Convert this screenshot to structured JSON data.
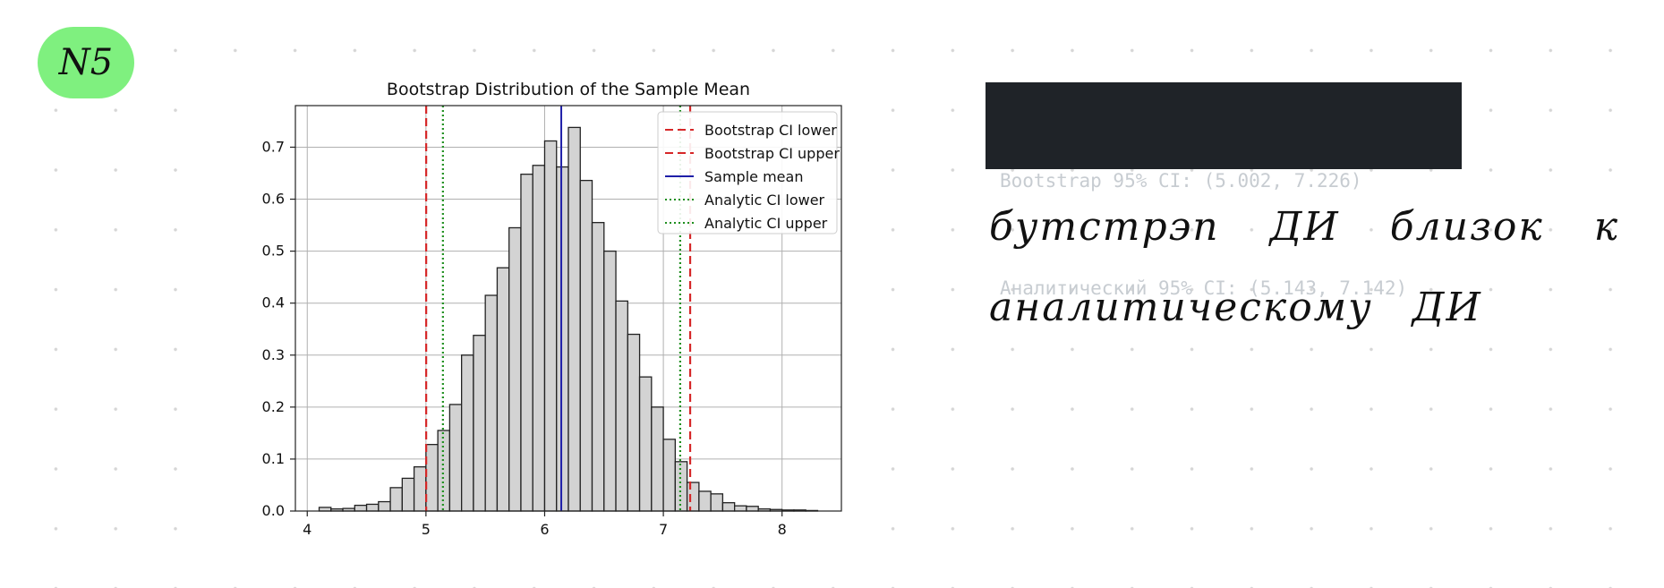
{
  "badge": {
    "label": "N5"
  },
  "console": {
    "lines": [
      "Bootstrap 95% CI: (5.002, 7.226)",
      "Аналитический 95% CI: (5.143, 7.142)"
    ]
  },
  "note": {
    "lines": [
      "бутстрэп ДИ близок к",
      "аналитическому ДИ"
    ]
  },
  "chart_data": {
    "type": "bar",
    "title": "Bootstrap Distribution of the Sample Mean",
    "xlabel": "",
    "ylabel": "",
    "xlim": [
      3.9,
      8.5
    ],
    "ylim": [
      0,
      0.78
    ],
    "grid": true,
    "legend_position": "top-right",
    "x_ticks": [
      4,
      5,
      6,
      7,
      8
    ],
    "y_ticks": [
      0.0,
      0.1,
      0.2,
      0.3,
      0.4,
      0.5,
      0.6,
      0.7
    ],
    "bin_width": 0.1,
    "bin_left_edges": [
      4.1,
      4.2,
      4.3,
      4.4,
      4.5,
      4.6,
      4.7,
      4.8,
      4.9,
      5.0,
      5.1,
      5.2,
      5.3,
      5.4,
      5.5,
      5.6,
      5.7,
      5.8,
      5.9,
      6.0,
      6.1,
      6.2,
      6.3,
      6.4,
      6.5,
      6.6,
      6.7,
      6.8,
      6.9,
      7.0,
      7.1,
      7.2,
      7.3,
      7.4,
      7.5,
      7.6,
      7.7,
      7.8,
      7.9,
      8.0,
      8.1,
      8.2
    ],
    "density": [
      0.007,
      0.004,
      0.005,
      0.011,
      0.013,
      0.018,
      0.045,
      0.063,
      0.085,
      0.128,
      0.155,
      0.205,
      0.3,
      0.338,
      0.415,
      0.468,
      0.545,
      0.648,
      0.665,
      0.712,
      0.662,
      0.738,
      0.636,
      0.555,
      0.5,
      0.404,
      0.34,
      0.258,
      0.2,
      0.138,
      0.095,
      0.055,
      0.038,
      0.033,
      0.016,
      0.01,
      0.009,
      0.004,
      0.003,
      0.002,
      0.002,
      0.001
    ],
    "vlines": [
      {
        "name": "Bootstrap CI lower",
        "x": 5.002,
        "color": "#d62728",
        "style": "dashed"
      },
      {
        "name": "Bootstrap CI upper",
        "x": 7.226,
        "color": "#d62728",
        "style": "dashed"
      },
      {
        "name": "Sample mean",
        "x": 6.14,
        "color": "#1f1fa8",
        "style": "solid"
      },
      {
        "name": "Analytic CI lower",
        "x": 5.143,
        "color": "#1e8f1e",
        "style": "dotted"
      },
      {
        "name": "Analytic CI upper",
        "x": 7.142,
        "color": "#1e8f1e",
        "style": "dotted"
      }
    ],
    "bar_fill": "#d3d3d3",
    "bar_edge": "#222222"
  }
}
